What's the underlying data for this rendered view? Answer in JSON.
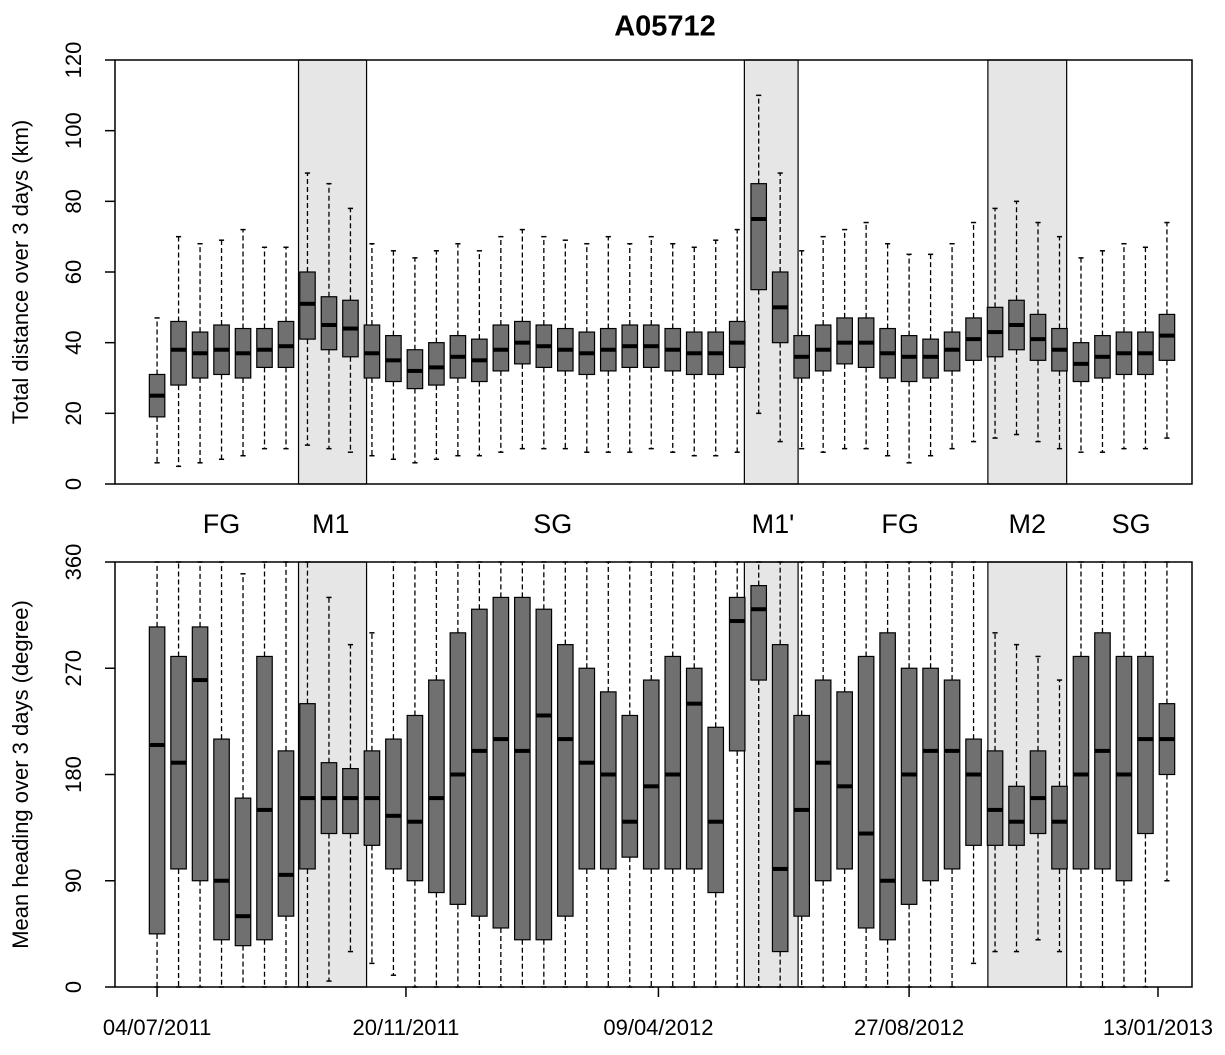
{
  "chart_data": [
    {
      "type": "boxplot",
      "title": "A05712",
      "ylabel": "Total distance over 3 days (km)",
      "xlim": [
        -23.5,
        578
      ],
      "ylim": [
        0,
        120
      ],
      "yticks": [
        0,
        20,
        40,
        60,
        80,
        100,
        120
      ],
      "box_color": "#707070",
      "shade_color": "#e6e6e6",
      "periods": [
        {
          "start": 79,
          "end": 117
        },
        {
          "start": 328,
          "end": 358
        },
        {
          "start": 464,
          "end": 508
        }
      ],
      "phase_labels": [
        {
          "label": "FG",
          "x": 36
        },
        {
          "label": "M1",
          "x": 97
        },
        {
          "label": "SG",
          "x": 221
        },
        {
          "label": "M1'",
          "x": 344
        },
        {
          "label": "FG",
          "x": 415
        },
        {
          "label": "M2",
          "x": 486
        },
        {
          "label": "SG",
          "x": 544
        }
      ],
      "x": [
        0,
        12,
        24,
        36,
        48,
        60,
        72,
        84,
        96,
        108,
        120,
        132,
        144,
        156,
        168,
        180,
        192,
        204,
        216,
        228,
        240,
        252,
        264,
        276,
        288,
        300,
        312,
        324,
        336,
        348,
        360,
        372,
        384,
        396,
        408,
        420,
        432,
        444,
        456,
        468,
        480,
        492,
        504,
        516,
        528,
        540,
        552,
        564
      ],
      "min": [
        6,
        5,
        6,
        7,
        8,
        10,
        10,
        11,
        10,
        9,
        8,
        7,
        6,
        7,
        8,
        8,
        9,
        10,
        10,
        10,
        9,
        9,
        9,
        10,
        9,
        8,
        8,
        9,
        20,
        12,
        10,
        9,
        10,
        10,
        8,
        6,
        8,
        10,
        12,
        13,
        14,
        12,
        10,
        9,
        9,
        10,
        10,
        13
      ],
      "q1": [
        19,
        28,
        30,
        31,
        30,
        33,
        33,
        41,
        38,
        36,
        30,
        29,
        27,
        28,
        30,
        29,
        32,
        34,
        33,
        32,
        31,
        32,
        33,
        33,
        32,
        31,
        31,
        33,
        55,
        40,
        30,
        32,
        34,
        33,
        30,
        29,
        30,
        32,
        35,
        36,
        38,
        35,
        32,
        29,
        30,
        31,
        31,
        35
      ],
      "median": [
        25,
        38,
        37,
        38,
        37,
        38,
        39,
        51,
        45,
        44,
        37,
        35,
        32,
        33,
        36,
        35,
        38,
        40,
        39,
        38,
        37,
        38,
        39,
        39,
        38,
        37,
        37,
        40,
        75,
        50,
        36,
        38,
        40,
        40,
        37,
        36,
        36,
        38,
        41,
        43,
        45,
        41,
        38,
        34,
        36,
        37,
        37,
        42
      ],
      "q3": [
        31,
        46,
        43,
        45,
        44,
        44,
        46,
        60,
        53,
        52,
        45,
        42,
        38,
        40,
        42,
        41,
        45,
        46,
        45,
        44,
        43,
        44,
        45,
        45,
        44,
        43,
        43,
        46,
        85,
        60,
        42,
        45,
        47,
        47,
        44,
        42,
        41,
        43,
        47,
        50,
        52,
        48,
        44,
        40,
        42,
        43,
        43,
        48
      ],
      "max": [
        47,
        70,
        68,
        69,
        72,
        67,
        67,
        88,
        85,
        78,
        68,
        66,
        64,
        66,
        68,
        66,
        70,
        72,
        70,
        69,
        68,
        70,
        68,
        70,
        68,
        67,
        69,
        72,
        110,
        88,
        66,
        70,
        72,
        74,
        68,
        65,
        65,
        68,
        74,
        78,
        80,
        74,
        70,
        64,
        66,
        68,
        67,
        74
      ]
    },
    {
      "type": "boxplot",
      "ylabel": "Mean heading over 3 days (degree)",
      "xlim": [
        -23.5,
        578
      ],
      "ylim": [
        0,
        360
      ],
      "yticks": [
        0,
        90,
        180,
        270,
        360
      ],
      "xticks": [
        {
          "value": 0,
          "label": "04/07/2011"
        },
        {
          "value": 139,
          "label": "20/11/2011"
        },
        {
          "value": 280,
          "label": "09/04/2012"
        },
        {
          "value": 420,
          "label": "27/08/2012"
        },
        {
          "value": 559,
          "label": "13/01/2013"
        }
      ],
      "box_color": "#707070",
      "shade_color": "#e6e6e6",
      "periods": [
        {
          "start": 79,
          "end": 117
        },
        {
          "start": 328,
          "end": 358
        },
        {
          "start": 464,
          "end": 508
        }
      ],
      "x": [
        0,
        12,
        24,
        36,
        48,
        60,
        72,
        84,
        96,
        108,
        120,
        132,
        144,
        156,
        168,
        180,
        192,
        204,
        216,
        228,
        240,
        252,
        264,
        276,
        288,
        300,
        312,
        324,
        336,
        348,
        360,
        372,
        384,
        396,
        408,
        420,
        432,
        444,
        456,
        468,
        480,
        492,
        504,
        516,
        528,
        540,
        552,
        564
      ],
      "min": [
        0,
        0,
        0,
        0,
        0,
        0,
        0,
        0,
        5,
        30,
        20,
        10,
        0,
        0,
        0,
        0,
        0,
        0,
        0,
        0,
        0,
        0,
        0,
        0,
        0,
        0,
        0,
        0,
        0,
        0,
        0,
        0,
        0,
        0,
        0,
        0,
        0,
        0,
        20,
        30,
        30,
        40,
        30,
        0,
        0,
        0,
        0,
        90
      ],
      "q1": [
        45,
        100,
        90,
        40,
        35,
        40,
        60,
        100,
        130,
        130,
        120,
        100,
        90,
        80,
        70,
        60,
        50,
        40,
        40,
        60,
        100,
        100,
        110,
        100,
        100,
        100,
        80,
        200,
        260,
        30,
        60,
        90,
        100,
        50,
        40,
        70,
        90,
        100,
        120,
        120,
        120,
        130,
        100,
        100,
        100,
        90,
        130,
        180
      ],
      "median": [
        205,
        190,
        260,
        90,
        60,
        150,
        95,
        160,
        160,
        160,
        160,
        145,
        140,
        160,
        180,
        200,
        210,
        200,
        230,
        210,
        190,
        180,
        140,
        170,
        180,
        240,
        140,
        310,
        320,
        100,
        150,
        190,
        170,
        130,
        90,
        180,
        200,
        200,
        180,
        150,
        140,
        160,
        140,
        180,
        200,
        180,
        210,
        210
      ],
      "q3": [
        305,
        280,
        305,
        210,
        160,
        280,
        200,
        240,
        190,
        185,
        200,
        210,
        230,
        260,
        300,
        320,
        330,
        330,
        320,
        290,
        270,
        250,
        230,
        260,
        280,
        270,
        220,
        330,
        340,
        290,
        230,
        260,
        250,
        280,
        300,
        270,
        270,
        260,
        210,
        200,
        170,
        200,
        170,
        280,
        300,
        280,
        280,
        240
      ],
      "max": [
        360,
        360,
        360,
        360,
        350,
        360,
        360,
        360,
        330,
        290,
        300,
        360,
        360,
        360,
        360,
        360,
        360,
        360,
        360,
        360,
        360,
        360,
        360,
        360,
        360,
        360,
        360,
        360,
        360,
        360,
        360,
        360,
        360,
        360,
        360,
        360,
        360,
        360,
        360,
        300,
        290,
        280,
        260,
        360,
        360,
        360,
        360,
        360
      ]
    }
  ]
}
